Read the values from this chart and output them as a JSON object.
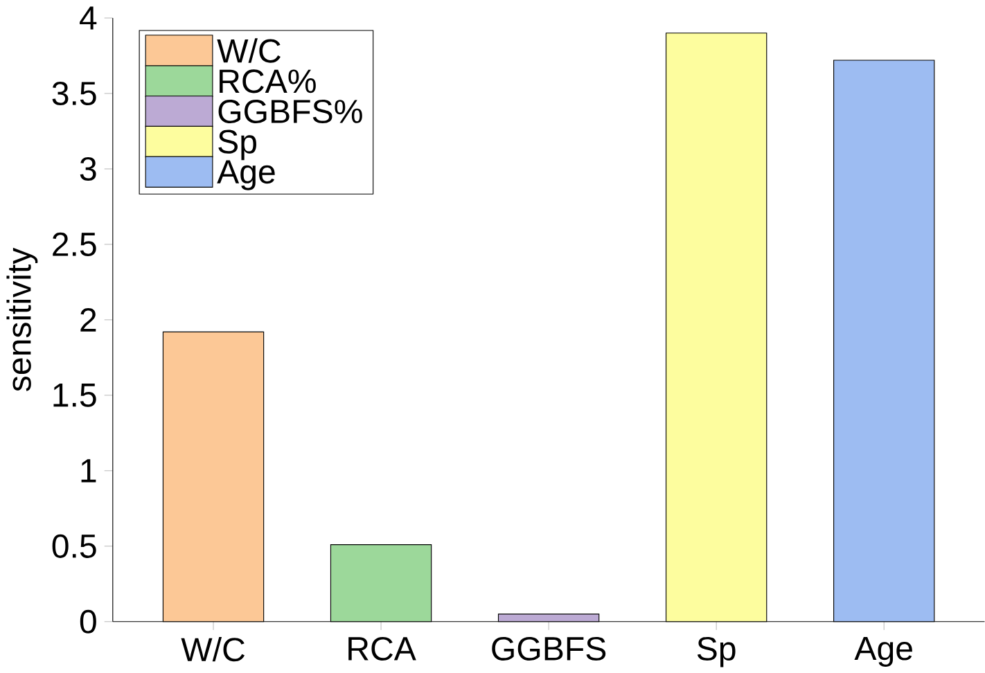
{
  "chart_data": {
    "type": "bar",
    "ylabel": "sensitivity",
    "categories": [
      "W/C",
      "RCA",
      "GGBFS",
      "Sp",
      "Age"
    ],
    "series": [
      {
        "name": "W/C",
        "color": "#fcc896",
        "values": [
          1.92,
          null,
          null,
          null,
          null
        ]
      },
      {
        "name": "RCA%",
        "color": "#9cd89a",
        "values": [
          null,
          0.51,
          null,
          null,
          null
        ]
      },
      {
        "name": "GGBFS%",
        "color": "#bcaad4",
        "values": [
          null,
          null,
          0.05,
          null,
          null
        ]
      },
      {
        "name": "Sp",
        "color": "#fdfd9e",
        "values": [
          null,
          null,
          null,
          3.9,
          null
        ]
      },
      {
        "name": "Age",
        "color": "#9dbcf2",
        "values": [
          null,
          null,
          null,
          null,
          3.72
        ]
      }
    ],
    "ylim": [
      0,
      4
    ],
    "yticks": [
      0,
      0.5,
      1,
      1.5,
      2,
      2.5,
      3,
      3.5,
      4
    ],
    "legend": "top left",
    "grid": false
  }
}
